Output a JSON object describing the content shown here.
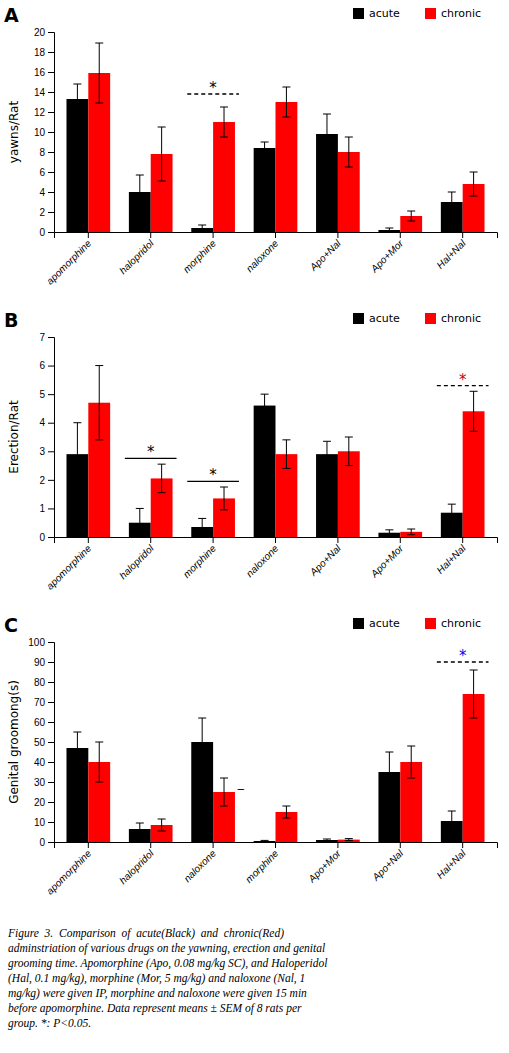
{
  "chart_data": [
    {
      "type": "bar",
      "title": "A",
      "categories": [
        "apomorphine",
        "halopridol",
        "morphine",
        "naloxone",
        "Apo+Nal",
        "Apo+Mor",
        "Hal+Nal"
      ],
      "series": [
        {
          "name": "acute",
          "color": "#000000",
          "values": [
            13.3,
            4.0,
            0.4,
            8.4,
            9.8,
            0.2,
            3.0
          ],
          "errors": [
            1.5,
            1.7,
            0.3,
            0.6,
            2.0,
            0.2,
            1.0
          ]
        },
        {
          "name": "chronic",
          "color": "#ff0000",
          "values": [
            15.9,
            7.8,
            11.0,
            13.0,
            8.0,
            1.6,
            4.8
          ],
          "errors": [
            3.0,
            2.7,
            1.5,
            1.5,
            1.5,
            0.5,
            1.2
          ]
        }
      ],
      "y_label": "yawns/Rat",
      "ylim": [
        0,
        20
      ],
      "yticks": [
        0,
        2,
        4,
        6,
        8,
        10,
        12,
        14,
        16,
        18,
        20
      ],
      "legend": "upper right",
      "annotations": [
        {
          "text": "*",
          "category": "morphine",
          "y": 13.8,
          "line_style": "dashed",
          "color": "#000000"
        }
      ]
    },
    {
      "type": "bar",
      "title": "B",
      "categories": [
        "apomorphine",
        "halopridol",
        "morphine",
        "naloxone",
        "Apo+Nal",
        "Apo+Mor",
        "Hal+Nal"
      ],
      "series": [
        {
          "name": "acute",
          "color": "#000000",
          "values": [
            2.9,
            0.5,
            0.35,
            4.6,
            2.9,
            0.15,
            0.85
          ],
          "errors": [
            1.1,
            0.5,
            0.3,
            0.4,
            0.45,
            0.1,
            0.3
          ]
        },
        {
          "name": "chronic",
          "color": "#ff0000",
          "values": [
            4.7,
            2.05,
            1.35,
            2.9,
            3.0,
            0.18,
            4.4
          ],
          "errors": [
            1.3,
            0.5,
            0.4,
            0.5,
            0.5,
            0.1,
            0.7
          ]
        }
      ],
      "y_label": "Erection/Rat",
      "ylim": [
        0,
        7
      ],
      "yticks": [
        0,
        1,
        2,
        3,
        4,
        5,
        6,
        7
      ],
      "legend": "upper right",
      "annotations": [
        {
          "text": "*",
          "category": "halopridol",
          "y": 2.75,
          "line_style": "solid",
          "color": "#000000"
        },
        {
          "text": "*",
          "category": "morphine",
          "y": 1.95,
          "line_style": "solid",
          "color": "#000000"
        },
        {
          "text": "*",
          "category": "Hal+Nal",
          "y": 5.3,
          "line_style": "dashed",
          "color": "#cc0000"
        }
      ]
    },
    {
      "type": "bar",
      "title": "C",
      "categories": [
        "apomorphine",
        "halopridol",
        "naloxone",
        "morphine",
        "Apo+Mor",
        "Apo+Nal",
        "Hal+Nal"
      ],
      "series": [
        {
          "name": "acute",
          "color": "#000000",
          "values": [
            47,
            6.5,
            50,
            0.5,
            1.0,
            35,
            10.5
          ],
          "errors": [
            8,
            3,
            12,
            0.3,
            0.5,
            10,
            5
          ]
        },
        {
          "name": "chronic",
          "color": "#ff0000",
          "values": [
            40,
            8.5,
            25,
            15,
            1.2,
            40,
            74
          ],
          "errors": [
            10,
            3,
            7,
            3,
            0.5,
            8,
            12
          ]
        }
      ],
      "y_label": "Genital groomong(s)",
      "ylim": [
        0,
        100
      ],
      "yticks": [
        0,
        10,
        20,
        30,
        40,
        50,
        60,
        70,
        80,
        90,
        100
      ],
      "legend": "upper right",
      "annotations": [
        {
          "text": "‒",
          "category": "naloxone",
          "y": 26.5,
          "color": "#000000"
        },
        {
          "text": "*",
          "category": "Hal+Nal",
          "y": 90,
          "line_style": "dashed",
          "color": "blue"
        }
      ]
    }
  ],
  "caption": "Figure  3.  Comparison  of  acute(Black)  and  chronic(Red)\nadminstriation of various drugs on the yawning, erection and genital\ngrooming time. Apomorphine (Apo, 0.08 mg/kg SC), and Haloperidol\n(Hal, 0.1 mg/kg), morphine (Mor, 5 mg/kg) and naloxone (Nal, 1\nmg/kg) were given IP, morphine and naloxone were given 15 min\nbefore apomorphine. Data represent means ± SEM of 8 rats per\ngroup. *: P<0.05."
}
